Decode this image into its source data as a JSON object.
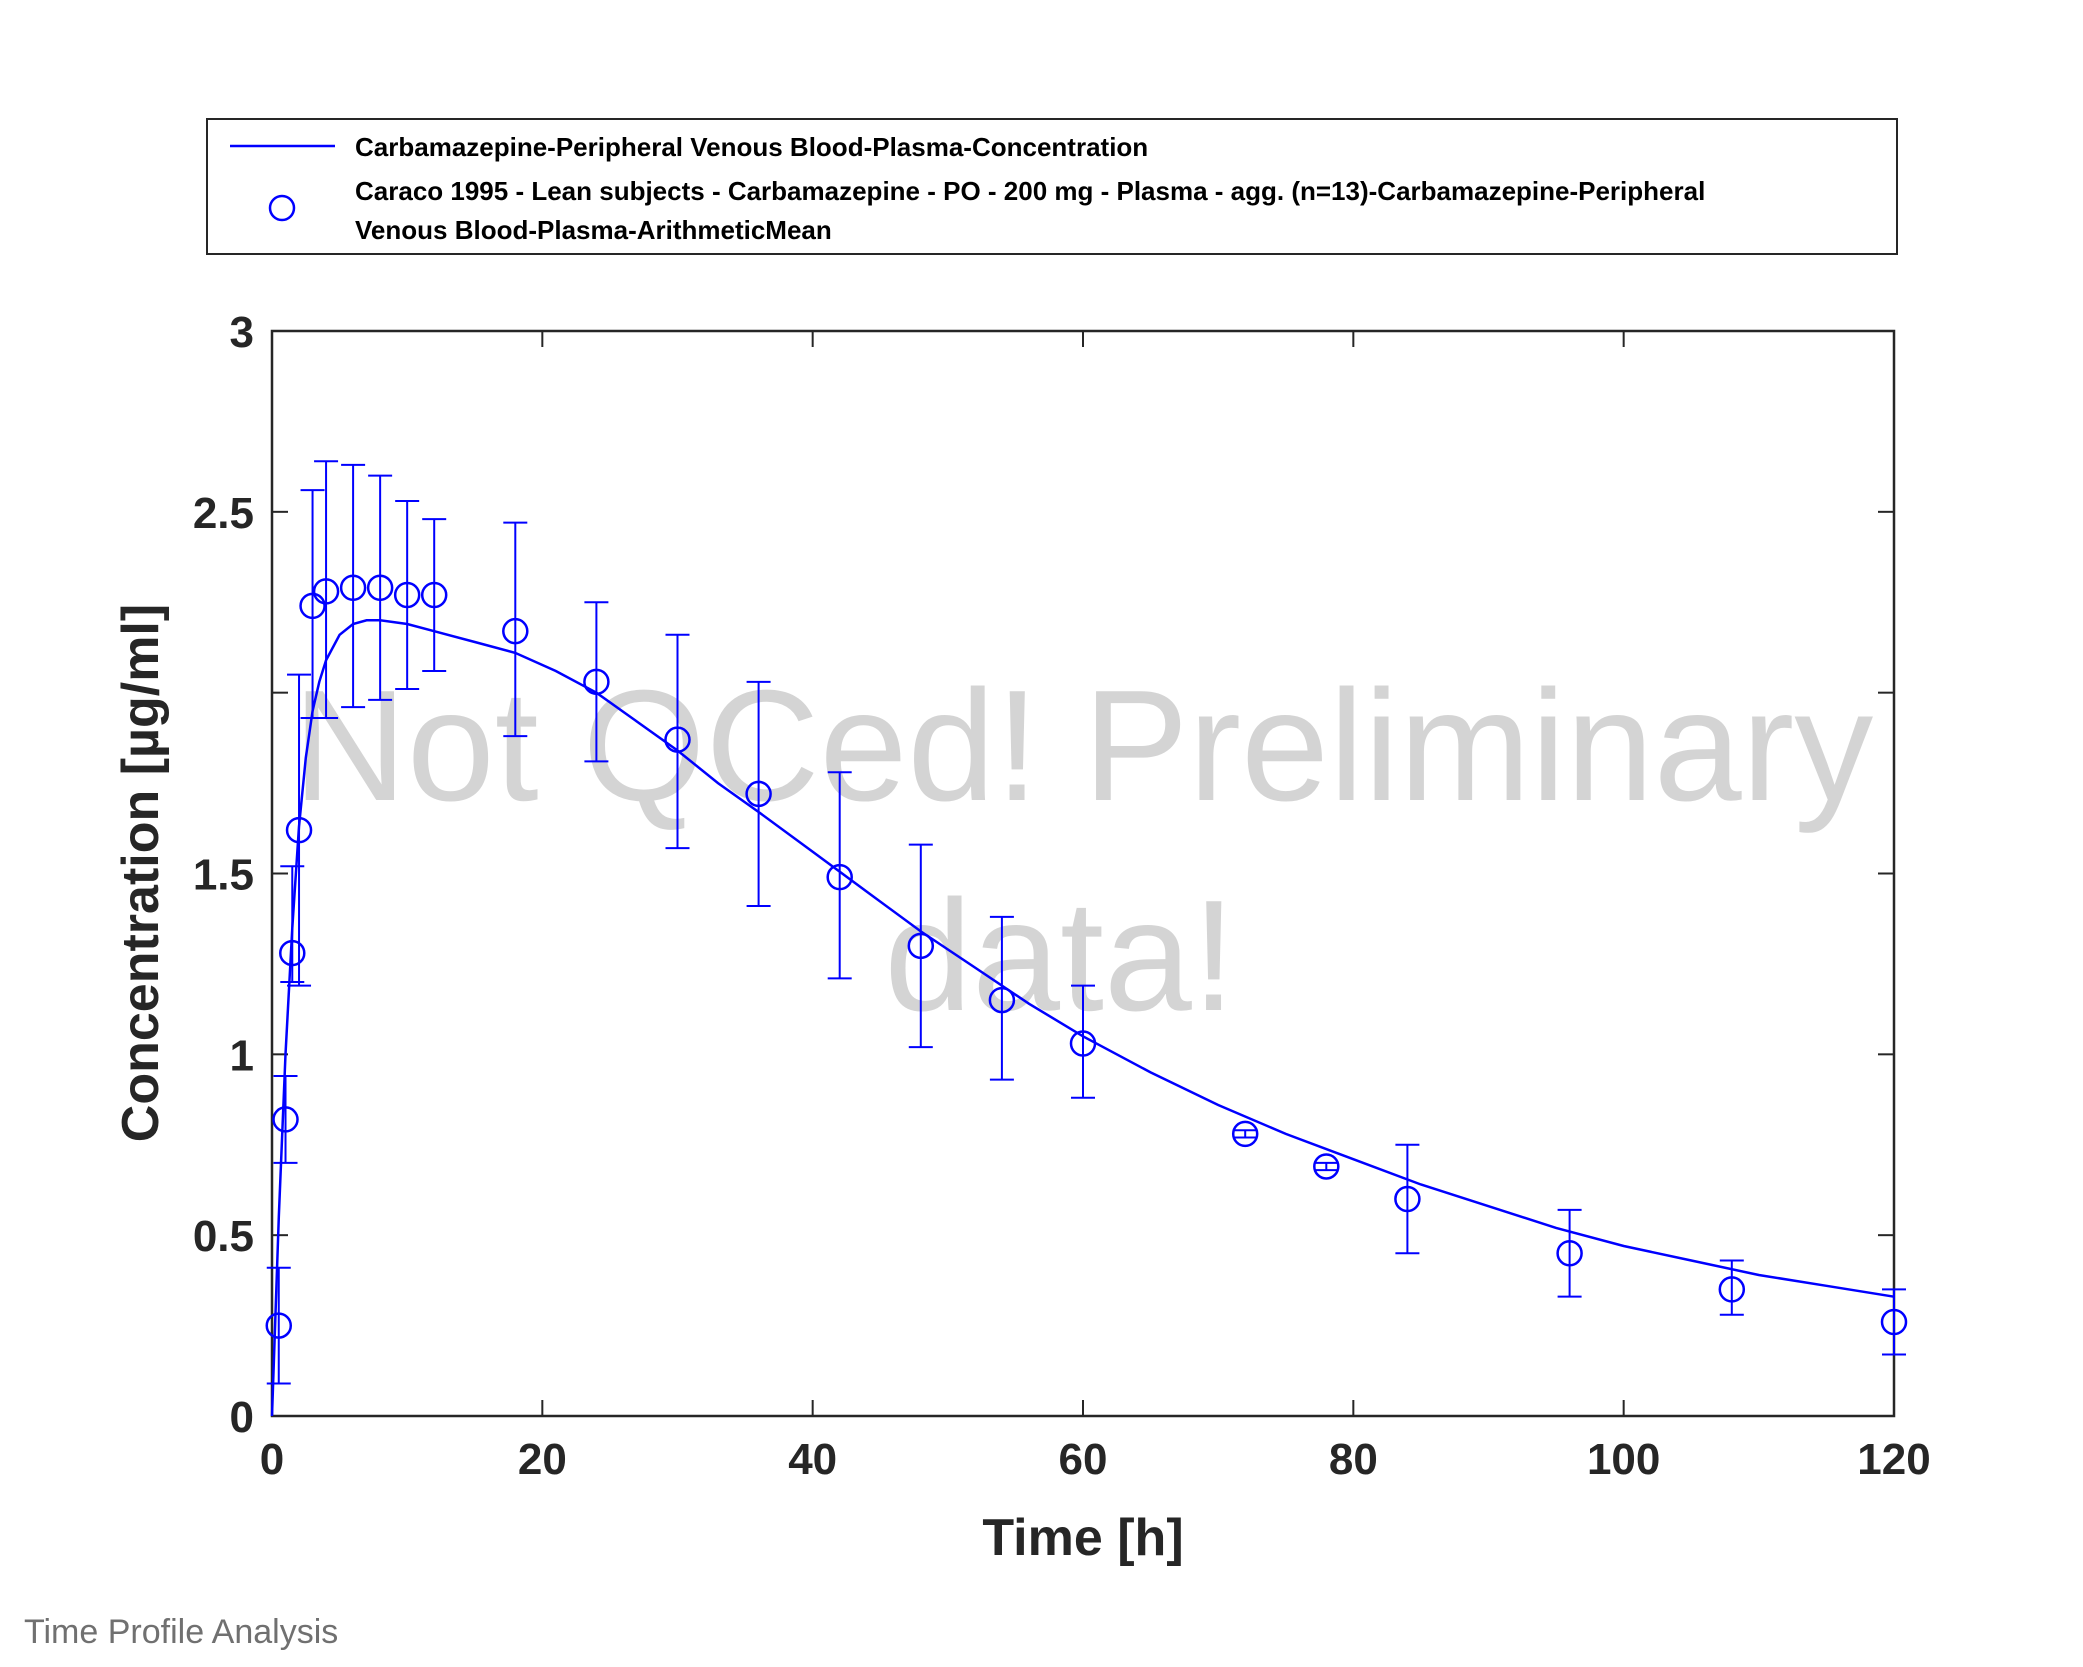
{
  "footer_text": "Time Profile Analysis",
  "watermark": {
    "line1": "Not QCed! Preliminary",
    "line2": "data!"
  },
  "colors": {
    "series": "#0000ff",
    "axis": "#262626",
    "watermark": "#c8c8c8",
    "footer": "#707070"
  },
  "chart_data": {
    "type": "line",
    "xlabel": "Time [h]",
    "ylabel": "Concentration [µg/ml]",
    "xlim": [
      0,
      120
    ],
    "ylim": [
      0,
      3
    ],
    "xticks": [
      0,
      20,
      40,
      60,
      80,
      100,
      120
    ],
    "yticks": [
      0,
      0.5,
      1,
      1.5,
      2,
      2.5,
      3
    ],
    "ytick_labels": [
      "0",
      "0.5",
      "1",
      "1.5",
      "",
      "2.5",
      "3"
    ],
    "grid": false,
    "legend_position": "top",
    "series": [
      {
        "name": "Carbamazepine-Peripheral Venous Blood-Plasma-Concentration",
        "kind": "line",
        "color": "#0000ff",
        "x": [
          0,
          0.5,
          1,
          1.5,
          2,
          2.5,
          3,
          3.5,
          4,
          5,
          6,
          7,
          8,
          10,
          12,
          15,
          18,
          21,
          24,
          27,
          30,
          33,
          36,
          40,
          44,
          48,
          52,
          56,
          60,
          65,
          70,
          75,
          80,
          85,
          90,
          95,
          100,
          105,
          110,
          115,
          120
        ],
        "y": [
          0,
          0.55,
          1.0,
          1.35,
          1.63,
          1.82,
          1.95,
          2.03,
          2.09,
          2.16,
          2.19,
          2.2,
          2.2,
          2.19,
          2.17,
          2.14,
          2.11,
          2.06,
          2.0,
          1.92,
          1.84,
          1.75,
          1.67,
          1.56,
          1.45,
          1.34,
          1.24,
          1.14,
          1.05,
          0.95,
          0.86,
          0.78,
          0.71,
          0.64,
          0.58,
          0.52,
          0.47,
          0.43,
          0.39,
          0.36,
          0.33
        ]
      },
      {
        "name_line1": "Caraco 1995 - Lean subjects - Carbamazepine - PO - 200 mg - Plasma - agg. (n=13)-Carbamazepine-Peripheral",
        "name_line2": "Venous Blood-Plasma-ArithmeticMean",
        "kind": "scatter-errorbar",
        "marker": "circle-open",
        "color": "#0000ff",
        "points": [
          {
            "x": 0.5,
            "y": 0.25,
            "lo": 0.09,
            "hi": 0.41
          },
          {
            "x": 1,
            "y": 0.82,
            "lo": 0.7,
            "hi": 0.94
          },
          {
            "x": 1.5,
            "y": 1.28,
            "lo": 1.2,
            "hi": 1.52
          },
          {
            "x": 2,
            "y": 1.62,
            "lo": 1.19,
            "hi": 2.05
          },
          {
            "x": 3,
            "y": 2.24,
            "lo": 1.93,
            "hi": 2.56
          },
          {
            "x": 4,
            "y": 2.28,
            "lo": 1.93,
            "hi": 2.64
          },
          {
            "x": 6,
            "y": 2.29,
            "lo": 1.96,
            "hi": 2.63
          },
          {
            "x": 8,
            "y": 2.29,
            "lo": 1.98,
            "hi": 2.6
          },
          {
            "x": 10,
            "y": 2.27,
            "lo": 2.01,
            "hi": 2.53
          },
          {
            "x": 12,
            "y": 2.27,
            "lo": 2.06,
            "hi": 2.48
          },
          {
            "x": 18,
            "y": 2.17,
            "lo": 1.88,
            "hi": 2.47
          },
          {
            "x": 24,
            "y": 2.03,
            "lo": 1.81,
            "hi": 2.25
          },
          {
            "x": 30,
            "y": 1.87,
            "lo": 1.57,
            "hi": 2.16
          },
          {
            "x": 36,
            "y": 1.72,
            "lo": 1.41,
            "hi": 2.03
          },
          {
            "x": 42,
            "y": 1.49,
            "lo": 1.21,
            "hi": 1.78
          },
          {
            "x": 48,
            "y": 1.3,
            "lo": 1.02,
            "hi": 1.58
          },
          {
            "x": 54,
            "y": 1.15,
            "lo": 0.93,
            "hi": 1.38
          },
          {
            "x": 60,
            "y": 1.03,
            "lo": 0.88,
            "hi": 1.19
          },
          {
            "x": 72,
            "y": 0.78,
            "lo": 0.77,
            "hi": 0.79
          },
          {
            "x": 78,
            "y": 0.69,
            "lo": 0.68,
            "hi": 0.7
          },
          {
            "x": 84,
            "y": 0.6,
            "lo": 0.45,
            "hi": 0.75
          },
          {
            "x": 96,
            "y": 0.45,
            "lo": 0.33,
            "hi": 0.57
          },
          {
            "x": 108,
            "y": 0.35,
            "lo": 0.28,
            "hi": 0.43
          },
          {
            "x": 120,
            "y": 0.26,
            "lo": 0.17,
            "hi": 0.35
          }
        ]
      }
    ]
  }
}
